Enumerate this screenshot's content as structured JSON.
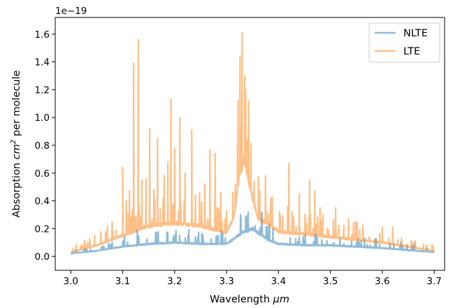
{
  "chart_data": {
    "type": "line",
    "xlabel": "Wavelength μm",
    "xlabel_main": "Wavelength ",
    "xlabel_unit": "μm",
    "ylabel": "Absorption cm² per molecule",
    "ylabel_main": "Absorption ",
    "ylabel_unit_base": "cm",
    "ylabel_unit_exp": "2",
    "ylabel_tail": " per molecule",
    "y_offset_label": "1e−19",
    "xlim": [
      2.97,
      3.72
    ],
    "ylim": [
      -0.1,
      1.72
    ],
    "x_ticks": [
      3.0,
      3.1,
      3.2,
      3.3,
      3.4,
      3.5,
      3.6,
      3.7
    ],
    "x_tick_labels": [
      "3.0",
      "3.1",
      "3.2",
      "3.3",
      "3.4",
      "3.5",
      "3.6",
      "3.7"
    ],
    "y_ticks": [
      0.0,
      0.2,
      0.4,
      0.6,
      0.8,
      1.0,
      1.2,
      1.4,
      1.6
    ],
    "y_tick_labels": [
      "0.0",
      "0.2",
      "0.4",
      "0.6",
      "0.8",
      "1.0",
      "1.2",
      "1.4",
      "1.6"
    ],
    "grid": false,
    "legend_position": "top-right",
    "series": [
      {
        "name": "NLTE",
        "color": "#1f77b4",
        "opacity": 0.5,
        "baseline": [
          [
            3.0,
            0.02
          ],
          [
            3.05,
            0.04
          ],
          [
            3.1,
            0.07
          ],
          [
            3.15,
            0.09
          ],
          [
            3.2,
            0.1
          ],
          [
            3.25,
            0.09
          ],
          [
            3.3,
            0.09
          ],
          [
            3.33,
            0.17
          ],
          [
            3.35,
            0.2
          ],
          [
            3.38,
            0.12
          ],
          [
            3.4,
            0.09
          ],
          [
            3.45,
            0.08
          ],
          [
            3.5,
            0.08
          ],
          [
            3.6,
            0.06
          ],
          [
            3.7,
            0.03
          ]
        ],
        "peaks": [
          [
            3.128,
            0.19
          ],
          [
            3.165,
            0.17
          ],
          [
            3.2,
            0.15
          ],
          [
            3.24,
            0.14
          ],
          [
            3.327,
            0.3
          ],
          [
            3.338,
            0.27
          ],
          [
            3.355,
            0.22
          ],
          [
            3.44,
            0.14
          ],
          [
            3.55,
            0.1
          ]
        ]
      },
      {
        "name": "LTE",
        "color": "#ff7f0e",
        "opacity": 0.5,
        "baseline": [
          [
            3.0,
            0.03
          ],
          [
            3.05,
            0.08
          ],
          [
            3.1,
            0.15
          ],
          [
            3.15,
            0.22
          ],
          [
            3.2,
            0.24
          ],
          [
            3.25,
            0.22
          ],
          [
            3.3,
            0.17
          ],
          [
            3.315,
            0.3
          ],
          [
            3.325,
            0.6
          ],
          [
            3.335,
            0.7
          ],
          [
            3.345,
            0.5
          ],
          [
            3.36,
            0.28
          ],
          [
            3.4,
            0.18
          ],
          [
            3.45,
            0.16
          ],
          [
            3.5,
            0.14
          ],
          [
            3.55,
            0.12
          ],
          [
            3.6,
            0.1
          ],
          [
            3.65,
            0.07
          ],
          [
            3.7,
            0.04
          ]
        ],
        "peaks": [
          [
            3.037,
            0.11
          ],
          [
            3.1,
            0.64
          ],
          [
            3.107,
            0.4
          ],
          [
            3.113,
            0.47
          ],
          [
            3.121,
            1.39
          ],
          [
            3.13,
            1.56
          ],
          [
            3.137,
            0.55
          ],
          [
            3.145,
            0.56
          ],
          [
            3.152,
            0.92
          ],
          [
            3.16,
            0.48
          ],
          [
            3.167,
            0.85
          ],
          [
            3.18,
            0.58
          ],
          [
            3.187,
            0.68
          ],
          [
            3.193,
            1.13
          ],
          [
            3.2,
            0.78
          ],
          [
            3.21,
            1.0
          ],
          [
            3.22,
            0.6
          ],
          [
            3.233,
            0.91
          ],
          [
            3.24,
            0.44
          ],
          [
            3.248,
            0.46
          ],
          [
            3.258,
            0.52
          ],
          [
            3.268,
            0.77
          ],
          [
            3.278,
            0.74
          ],
          [
            3.289,
            0.46
          ],
          [
            3.322,
            1.12
          ],
          [
            3.326,
            1.44
          ],
          [
            3.33,
            1.61
          ],
          [
            3.335,
            1.3
          ],
          [
            3.34,
            0.84
          ],
          [
            3.353,
            0.54
          ],
          [
            3.375,
            0.58
          ],
          [
            3.42,
            0.67
          ],
          [
            3.44,
            0.45
          ],
          [
            3.46,
            0.55
          ],
          [
            3.47,
            0.47
          ],
          [
            3.48,
            0.35
          ],
          [
            3.51,
            0.35
          ],
          [
            3.535,
            0.27
          ],
          [
            3.6,
            0.21
          ],
          [
            3.62,
            0.21
          ]
        ]
      }
    ]
  }
}
